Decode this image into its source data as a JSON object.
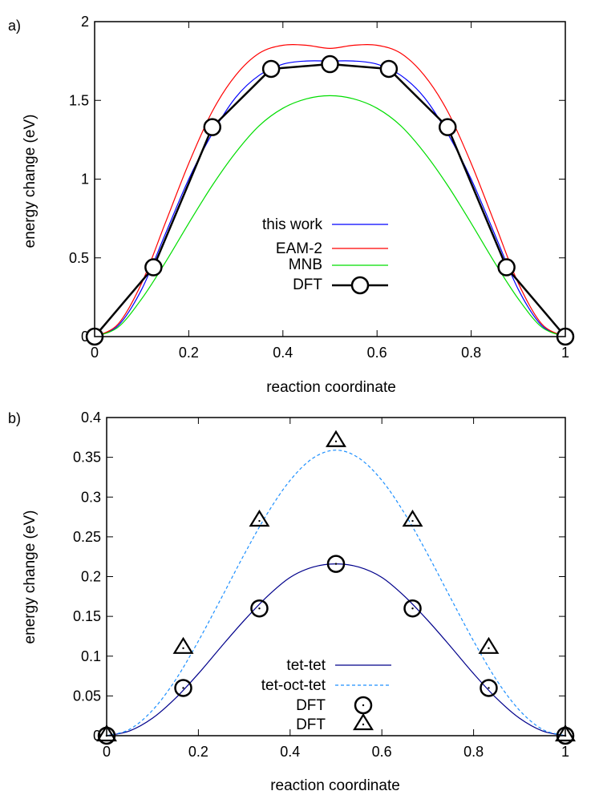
{
  "chart_data": [
    {
      "type": "line",
      "panel_label": "a)",
      "title": "",
      "xlabel": "reaction coordinate",
      "ylabel": "energy change (eV)",
      "xlim": [
        0,
        1
      ],
      "ylim": [
        0,
        2
      ],
      "xticks": [
        "0",
        "0.2",
        "0.4",
        "0.6",
        "0.8",
        "1"
      ],
      "yticks": [
        "0",
        "0.5",
        "1",
        "1.5",
        "2"
      ],
      "grid": false,
      "legend_position": "center",
      "series": [
        {
          "name": "this work",
          "color": "#0000ff",
          "style": "solid",
          "marker": "none",
          "x": [
            0,
            0.05,
            0.1,
            0.15,
            0.2,
            0.25,
            0.3,
            0.35,
            0.4,
            0.45,
            0.5,
            0.55,
            0.6,
            0.65,
            0.7,
            0.75,
            0.8,
            0.85,
            0.9,
            0.95,
            1
          ],
          "y": [
            0,
            0.07,
            0.3,
            0.65,
            1.0,
            1.29,
            1.52,
            1.66,
            1.73,
            1.75,
            1.75,
            1.75,
            1.73,
            1.66,
            1.52,
            1.29,
            1.0,
            0.65,
            0.3,
            0.07,
            0
          ]
        },
        {
          "name": "EAM-2",
          "color": "#ff0000",
          "style": "solid",
          "marker": "none",
          "x": [
            0,
            0.05,
            0.1,
            0.15,
            0.2,
            0.25,
            0.3,
            0.35,
            0.4,
            0.45,
            0.5,
            0.55,
            0.6,
            0.65,
            0.7,
            0.75,
            0.8,
            0.85,
            0.9,
            0.95,
            1
          ],
          "y": [
            0,
            0.08,
            0.34,
            0.72,
            1.1,
            1.43,
            1.66,
            1.8,
            1.85,
            1.85,
            1.83,
            1.85,
            1.85,
            1.8,
            1.66,
            1.43,
            1.1,
            0.72,
            0.34,
            0.08,
            0
          ]
        },
        {
          "name": "MNB",
          "color": "#00dd00",
          "style": "solid",
          "marker": "none",
          "x": [
            0,
            0.05,
            0.1,
            0.15,
            0.2,
            0.25,
            0.3,
            0.35,
            0.4,
            0.45,
            0.5,
            0.55,
            0.6,
            0.65,
            0.7,
            0.75,
            0.8,
            0.85,
            0.9,
            0.95,
            1
          ],
          "y": [
            0,
            0.06,
            0.24,
            0.47,
            0.72,
            0.96,
            1.17,
            1.34,
            1.45,
            1.51,
            1.53,
            1.51,
            1.45,
            1.34,
            1.17,
            0.96,
            0.72,
            0.47,
            0.24,
            0.06,
            0
          ]
        },
        {
          "name": "DFT",
          "color": "#000000",
          "style": "solid",
          "marker": "circle",
          "x": [
            0,
            0.125,
            0.25,
            0.375,
            0.5,
            0.625,
            0.75,
            0.875,
            1
          ],
          "y": [
            0,
            0.44,
            1.33,
            1.7,
            1.73,
            1.7,
            1.33,
            0.44,
            0
          ]
        }
      ]
    },
    {
      "type": "line",
      "panel_label": "b)",
      "title": "",
      "xlabel": "reaction coordinate",
      "ylabel": "energy change (eV)",
      "xlim": [
        0,
        1
      ],
      "ylim": [
        0,
        0.4
      ],
      "xticks": [
        "0",
        "0.2",
        "0.4",
        "0.6",
        "0.8",
        "1"
      ],
      "yticks": [
        "0",
        "0.05",
        "0.1",
        "0.15",
        "0.2",
        "0.25",
        "0.3",
        "0.35",
        "0.4"
      ],
      "grid": false,
      "legend_position": "bottom-center",
      "series": [
        {
          "name": "tet-tet",
          "color": "#00008b",
          "style": "solid",
          "marker": "none",
          "x": [
            0,
            0.05,
            0.1,
            0.15,
            0.2,
            0.25,
            0.3,
            0.35,
            0.4,
            0.45,
            0.5,
            0.55,
            0.6,
            0.65,
            0.7,
            0.75,
            0.8,
            0.85,
            0.9,
            0.95,
            1
          ],
          "y": [
            0,
            0.006,
            0.022,
            0.047,
            0.078,
            0.112,
            0.145,
            0.175,
            0.199,
            0.212,
            0.216,
            0.212,
            0.199,
            0.175,
            0.145,
            0.112,
            0.078,
            0.047,
            0.022,
            0.006,
            0
          ]
        },
        {
          "name": "tet-oct-tet",
          "color": "#1e90ff",
          "style": "dashed",
          "marker": "none",
          "x": [
            0,
            0.05,
            0.1,
            0.15,
            0.2,
            0.25,
            0.3,
            0.35,
            0.4,
            0.45,
            0.5,
            0.55,
            0.6,
            0.65,
            0.7,
            0.75,
            0.8,
            0.85,
            0.9,
            0.95,
            1
          ],
          "y": [
            0,
            0.008,
            0.032,
            0.07,
            0.119,
            0.173,
            0.228,
            0.279,
            0.321,
            0.349,
            0.359,
            0.349,
            0.321,
            0.279,
            0.228,
            0.173,
            0.119,
            0.07,
            0.032,
            0.008,
            0
          ]
        },
        {
          "name": "DFT",
          "color": "#000000",
          "style": "none",
          "marker": "circle",
          "x": [
            0,
            0.167,
            0.333,
            0.5,
            0.667,
            0.833,
            1
          ],
          "y": [
            0,
            0.06,
            0.16,
            0.216,
            0.16,
            0.06,
            0
          ]
        },
        {
          "name": "DFT",
          "color": "#000000",
          "style": "none",
          "marker": "triangle",
          "x": [
            0,
            0.167,
            0.333,
            0.5,
            0.667,
            0.833,
            1
          ],
          "y": [
            0,
            0.11,
            0.27,
            0.37,
            0.27,
            0.11,
            0
          ]
        }
      ]
    }
  ]
}
